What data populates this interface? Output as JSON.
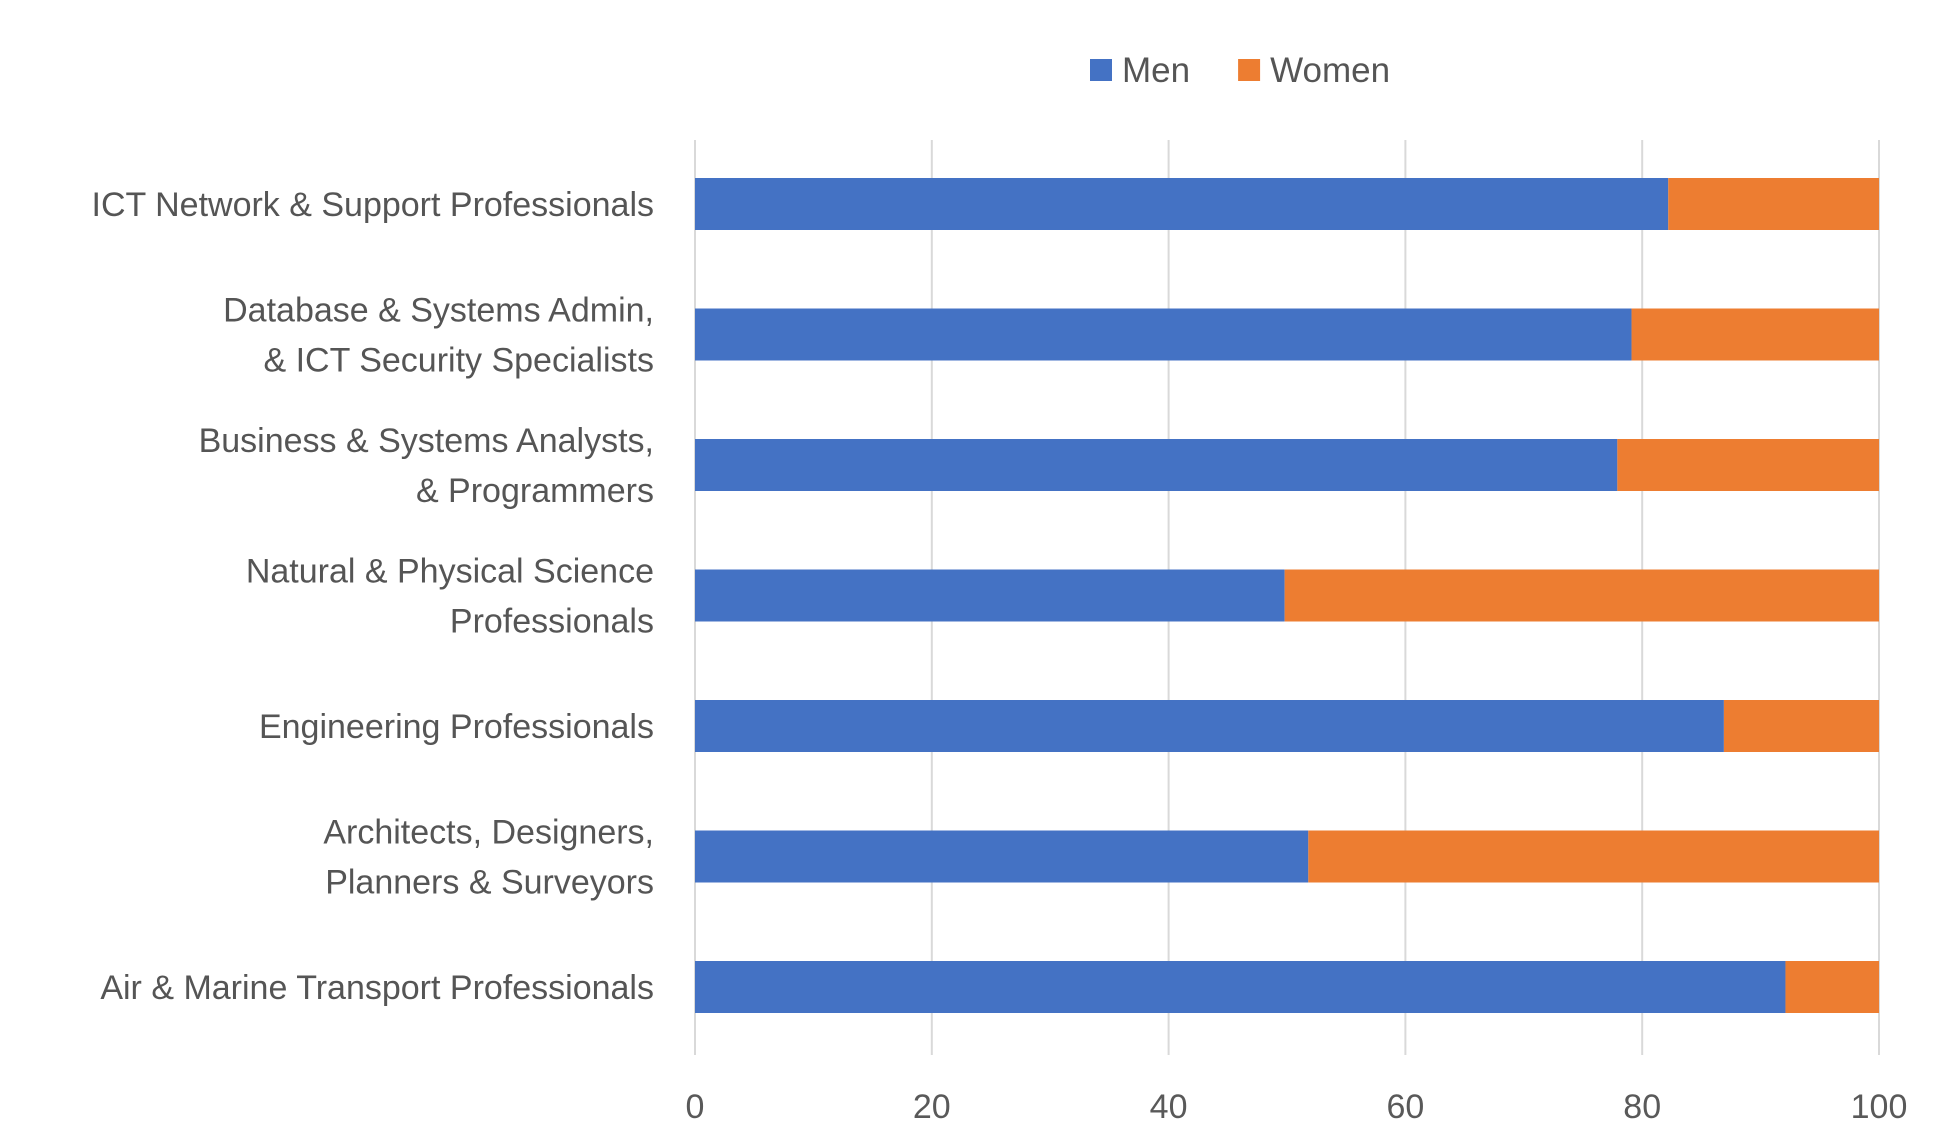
{
  "chart_data": {
    "type": "bar",
    "orientation": "horizontal",
    "stacked": true,
    "title": "",
    "xlabel": "",
    "ylabel": "",
    "xlim": [
      0,
      100
    ],
    "x_ticks": [
      0,
      20,
      40,
      60,
      80,
      100
    ],
    "grid": true,
    "legend_position": "top",
    "categories": [
      "ICT Network & Support Professionals",
      "Database & Systems Admin,\n& ICT Security Specialists",
      "Business & Systems Analysts,\n& Programmers",
      "Natural & Physical Science\nProfessionals",
      "Engineering Professionals",
      "Architects, Designers,\nPlanners & Surveyors",
      "Air & Marine Transport Professionals"
    ],
    "series": [
      {
        "name": "Men",
        "color": "#4472C4",
        "values": [
          82.2,
          79.1,
          77.9,
          49.8,
          86.9,
          51.8,
          92.1
        ]
      },
      {
        "name": "Women",
        "color": "#ED7D31",
        "values": [
          17.8,
          20.9,
          22.1,
          50.2,
          13.1,
          48.2,
          7.9
        ]
      }
    ]
  }
}
